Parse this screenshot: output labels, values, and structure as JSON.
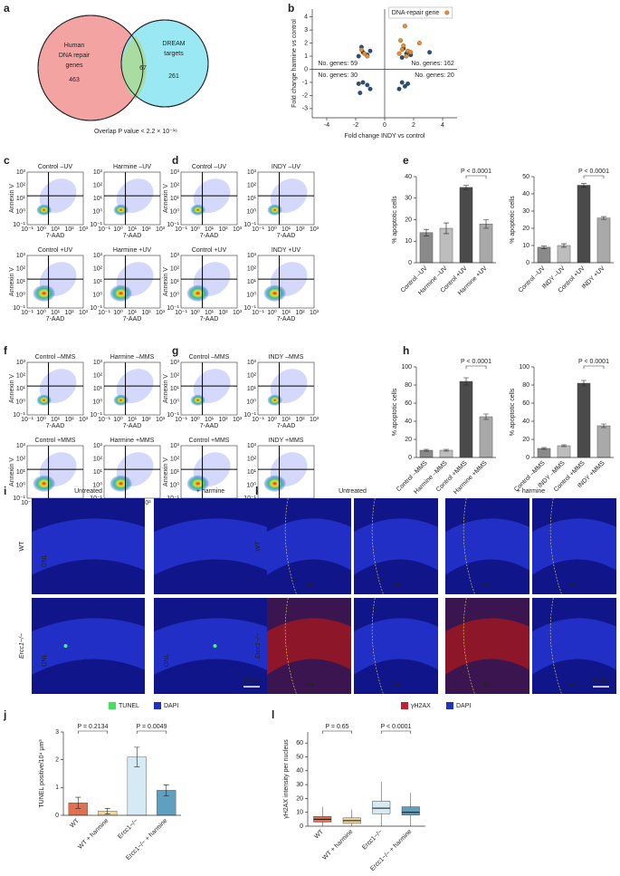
{
  "figure": {
    "panel_labels": [
      "a",
      "b",
      "c",
      "d",
      "e",
      "f",
      "g",
      "h",
      "i",
      "j",
      "k",
      "l"
    ],
    "venn": {
      "left": [
        "Human",
        "DNA repair",
        "genes"
      ],
      "left_count": "463",
      "overlap": "67",
      "right": [
        "DREAM",
        "targets"
      ],
      "right_count": "261",
      "caption": "Overlap P value < 2.2 × 10⁻¹⁶"
    },
    "flow": {
      "x_label": "7-AAD",
      "y_label": "Annexin V",
      "ticks": [
        "10⁻¹",
        "10⁰",
        "10¹",
        "10²",
        "10³"
      ],
      "titles": [
        "Control –UV",
        "Harmine –UV",
        "Control –UV",
        "INDY –UV",
        "Control +UV",
        "Harmine +UV",
        "Control +UV",
        "INDY +UV",
        "Control –MMS",
        "Harmine –MMS",
        "Control –MMS",
        "INDY –MMS",
        "Control +MMS",
        "Harmine +MMS",
        "Control +MMS",
        "INDY +MMS"
      ]
    },
    "images": {
      "i": {
        "cols": [
          "Untreated",
          "+ harmine"
        ],
        "rows": [
          "WT",
          "Ercc1−/−"
        ],
        "layer": "ONL",
        "legend": [
          "TUNEL",
          "DAPI"
        ],
        "scale": "30 μm"
      },
      "k": {
        "cols": [
          "Untreated",
          "+ harmine"
        ],
        "rows": [
          "WT",
          "Ercc1−/−"
        ],
        "layer": "INL",
        "legend": [
          "γH2AX",
          "DAPI"
        ],
        "scale": "30 μm"
      }
    }
  },
  "chart_data": [
    {
      "type": "scatter",
      "xlabel": "Fold change INDY vs control",
      "ylabel": "Fold change harmine vs control",
      "xlim": [
        -5,
        5
      ],
      "ylim": [
        -3.7,
        4.6
      ],
      "xticks": [
        -4,
        -2,
        0,
        2,
        4
      ],
      "yticks": [
        -3,
        -2,
        -1,
        0,
        1,
        2,
        3,
        4
      ],
      "annotations": [
        "No. genes: 59",
        "No. genes: 162",
        "No. genes: 30",
        "No. genes: 20"
      ],
      "series": [
        {
          "name": "DNA-repair gene",
          "color": "#f08c2e",
          "x": [
            1.0,
            1.2,
            1.5,
            1.3,
            1.1,
            1.6,
            -1.4,
            -1.6,
            2.4,
            1.4,
            1.8,
            -1.2
          ],
          "values": [
            1.2,
            1.5,
            1.0,
            1.8,
            2.2,
            1.4,
            1.2,
            1.5,
            2.0,
            3.3,
            1.3,
            1.0
          ]
        },
        {
          "color": "#24507a",
          "x": [
            -1.8,
            -1.5,
            -1.2,
            -1.6,
            -1.0,
            1.2,
            1.5,
            1.3,
            1.8,
            -1.5,
            -1.2,
            -1.8,
            -1.0,
            1.2,
            1.4,
            1.6,
            3.1,
            -1.7,
            1.0
          ],
          "values": [
            1.0,
            1.3,
            1.1,
            1.7,
            1.4,
            0.9,
            1.2,
            1.6,
            1.1,
            -1.0,
            -1.2,
            -1.1,
            -1.5,
            -1.0,
            -1.3,
            -1.1,
            1.3,
            -1.8,
            -1.5
          ]
        }
      ]
    },
    {
      "type": "bar",
      "ylabel": "% apoptotic cells",
      "categories": [
        "Control –UV",
        "Harmine –UV",
        "Control +UV",
        "Harmine +UV"
      ],
      "values": [
        14,
        16,
        35,
        18
      ],
      "errors": [
        1.5,
        2.5,
        1,
        2
      ],
      "colors": [
        "#8a8a8a",
        "#bdbdbd",
        "#4a4a4a",
        "#a9a9a9"
      ],
      "ylim": [
        0,
        40
      ],
      "yticks": [
        0,
        10,
        20,
        30,
        40
      ],
      "annotations": [
        "P < 0.0001"
      ]
    },
    {
      "type": "bar",
      "ylabel": "% apoptotic cells",
      "categories": [
        "Control –UV",
        "INDY –UV",
        "Control +UV",
        "INDY +UV"
      ],
      "values": [
        9,
        10,
        45,
        26
      ],
      "errors": [
        0.8,
        1,
        1,
        0.8
      ],
      "colors": [
        "#8a8a8a",
        "#bdbdbd",
        "#4a4a4a",
        "#a9a9a9"
      ],
      "ylim": [
        0,
        50
      ],
      "yticks": [
        0,
        10,
        20,
        30,
        40,
        50
      ],
      "annotations": [
        "P < 0.0001"
      ]
    },
    {
      "type": "bar",
      "ylabel": "% apoptotic cells",
      "categories": [
        "Control –MMS",
        "Harmine –MMS",
        "Control +MMS",
        "Harmine +MMS"
      ],
      "values": [
        8,
        8,
        84,
        45
      ],
      "errors": [
        1,
        1,
        4,
        3
      ],
      "colors": [
        "#8a8a8a",
        "#bdbdbd",
        "#4a4a4a",
        "#a9a9a9"
      ],
      "ylim": [
        0,
        100
      ],
      "yticks": [
        0,
        20,
        40,
        60,
        80,
        100
      ],
      "annotations": [
        "P < 0.0001"
      ]
    },
    {
      "type": "bar",
      "ylabel": "% apoptotic cells",
      "categories": [
        "Control –MMS",
        "INDY –MMS",
        "Control +MMS",
        "INDY +MMS"
      ],
      "values": [
        10,
        13,
        82,
        35
      ],
      "errors": [
        1,
        1,
        3,
        2
      ],
      "colors": [
        "#8a8a8a",
        "#bdbdbd",
        "#4a4a4a",
        "#a9a9a9"
      ],
      "ylim": [
        0,
        100
      ],
      "yticks": [
        0,
        20,
        40,
        60,
        80,
        100
      ],
      "annotations": [
        "P < 0.0001"
      ]
    },
    {
      "type": "bar",
      "ylabel": "TUNEL positive/10⁴ μm³",
      "categories": [
        "WT",
        "WT + harmine",
        "Ercc1−/−",
        "Ercc1−/− + harmine"
      ],
      "values": [
        0.45,
        0.15,
        2.1,
        0.9
      ],
      "errors": [
        0.2,
        0.1,
        0.35,
        0.2
      ],
      "colors": [
        "#e0704f",
        "#f0d79a",
        "#d6eaf5",
        "#5f9fc0"
      ],
      "ylim": [
        0,
        3
      ],
      "yticks": [
        0,
        1,
        2,
        3
      ],
      "annotations": [
        "P = 0.2134",
        "P = 0.0049"
      ]
    },
    {
      "type": "box",
      "ylabel": "γH2AX intensity per nucleus",
      "categories": [
        "WT",
        "WT + harmine",
        "Ercc1−/−",
        "Ercc1−/− + harmine"
      ],
      "whisker_low": [
        0,
        0,
        0,
        0
      ],
      "q1": [
        3,
        2,
        9,
        8
      ],
      "median": [
        5,
        4,
        13,
        10
      ],
      "q3": [
        7,
        6,
        18,
        14
      ],
      "whisker_high": [
        14,
        12,
        32,
        24
      ],
      "colors": [
        "#e0704f",
        "#f0d79a",
        "#d6eaf5",
        "#5f9fc0"
      ],
      "ylim": [
        0,
        68
      ],
      "yticks": [
        0,
        10,
        20,
        30,
        40,
        50,
        60
      ],
      "annotations": [
        "P = 0.65",
        "P < 0.0001"
      ]
    }
  ]
}
